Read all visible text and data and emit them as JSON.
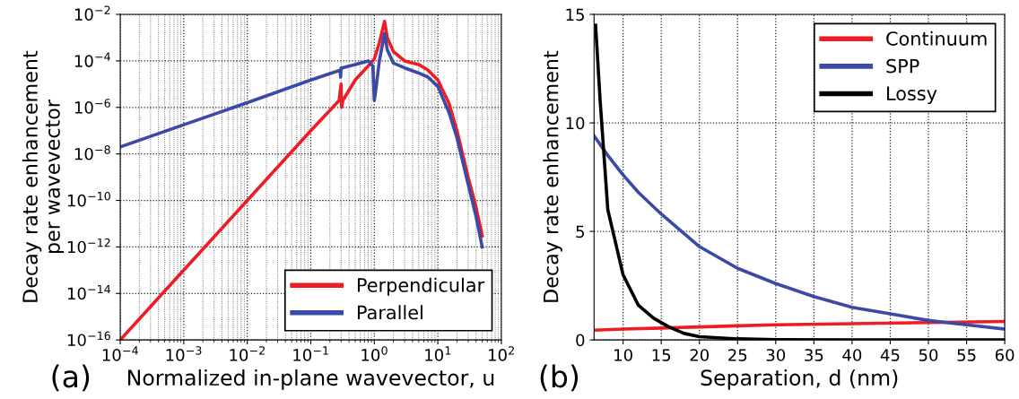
{
  "chart_data": [
    {
      "type": "line",
      "xlabel": "Normalized in-plane wavevector, u",
      "ylabel": "Decay rate enhancement\nper wavevector",
      "log": "xy",
      "grid": true,
      "legend": "bottom right",
      "line_style": "solid",
      "marker": "none",
      "xlim": [
        0.0001,
        100
      ],
      "ylim": [
        1e-16,
        0.01
      ],
      "xticks": [
        {
          "value": 0.0001,
          "label": "10$^{−4}$"
        },
        {
          "value": 0.001,
          "label": "10$^{−3}$"
        },
        {
          "value": 0.01,
          "label": "10$^{−2}$"
        },
        {
          "value": 0.1,
          "label": "10$^{−1}$"
        },
        {
          "value": 1,
          "label": "10$^{0}$"
        },
        {
          "value": 10,
          "label": "10$^{1}$"
        },
        {
          "value": 100,
          "label": "10$^{2}$"
        }
      ],
      "yticks": [
        {
          "value": 1e-16,
          "label": "10$^{−16}$"
        },
        {
          "value": 1e-14,
          "label": "10$^{−14}$"
        },
        {
          "value": 1e-12,
          "label": "10$^{−12}$"
        },
        {
          "value": 1e-10,
          "label": "10$^{−10}$"
        },
        {
          "value": 1e-08,
          "label": "10$^{−8}$"
        },
        {
          "value": 1e-06,
          "label": "10$^{−6}$"
        },
        {
          "value": 0.0001,
          "label": "10$^{−4}$"
        },
        {
          "value": 0.01,
          "label": "10$^{−2}$"
        }
      ],
      "annotations": [
        "(a)"
      ],
      "series": [
        {
          "name": "Perpendicular",
          "color": "#ee1c25",
          "x": [
            0.0001,
            0.001,
            0.01,
            0.1,
            0.28,
            0.3,
            0.305,
            0.32,
            0.5,
            0.8,
            1.0,
            1.2,
            1.45,
            1.6,
            2,
            3,
            5,
            7,
            10,
            15,
            20,
            30,
            40,
            50
          ],
          "values": [
            1e-16,
            1e-13,
            1e-10,
            1e-07,
            2e-06,
            1e-05,
            1e-06,
            2e-06,
            1.5e-05,
            6e-05,
            0.00012,
            0.0006,
            0.005,
            0.001,
            0.00025,
            0.0001,
            7e-05,
            4e-05,
            1.5e-05,
            1.5e-06,
            1e-07,
            1e-09,
            5e-11,
            3e-12
          ]
        },
        {
          "name": "Parallel",
          "color": "#3a4aa6",
          "x": [
            0.0001,
            0.001,
            0.01,
            0.1,
            0.29,
            0.295,
            0.3,
            0.31,
            0.5,
            0.8,
            0.95,
            1.0,
            1.05,
            1.2,
            1.45,
            1.6,
            2,
            3,
            5,
            7,
            10,
            15,
            20,
            30,
            40,
            50
          ],
          "values": [
            2e-08,
            1.8e-07,
            1.6e-06,
            1.5e-05,
            4e-05,
            2e-05,
            5e-05,
            5e-05,
            7e-05,
            0.0001,
            6e-05,
            2e-06,
            5e-06,
            0.0001,
            0.0015,
            0.0003,
            8e-05,
            5e-05,
            3e-05,
            2e-05,
            8e-06,
            6e-07,
            5e-08,
            5e-10,
            2e-11,
            1e-12
          ]
        }
      ]
    },
    {
      "type": "line",
      "xlabel": "Separation, d (nm)",
      "ylabel": "Decay rate enhancement",
      "grid": true,
      "legend": "top right",
      "line_style": "solid",
      "marker": "none",
      "xlim": [
        6.2,
        60
      ],
      "ylim": [
        0,
        15
      ],
      "xticks": [
        10,
        15,
        20,
        25,
        30,
        35,
        40,
        45,
        50,
        55,
        60
      ],
      "yticks": [
        0,
        5,
        10,
        15
      ],
      "annotations": [
        "(b)"
      ],
      "series": [
        {
          "name": "Continuum",
          "color": "#ee1c25",
          "x": [
            6.2,
            10,
            15,
            20,
            25,
            30,
            40,
            50,
            60
          ],
          "values": [
            0.45,
            0.5,
            0.55,
            0.6,
            0.65,
            0.7,
            0.75,
            0.8,
            0.85
          ]
        },
        {
          "name": "SPP",
          "color": "#3a4aa6",
          "x": [
            6.2,
            8,
            10,
            12,
            15,
            20,
            25,
            30,
            35,
            40,
            45,
            50,
            55,
            60
          ],
          "values": [
            9.4,
            8.5,
            7.6,
            6.8,
            5.8,
            4.3,
            3.3,
            2.6,
            2.0,
            1.5,
            1.2,
            0.9,
            0.7,
            0.5
          ]
        },
        {
          "name": "Lossy",
          "color": "#000000",
          "x": [
            6.4,
            7,
            8,
            9,
            10,
            12,
            14,
            16,
            18,
            20,
            25,
            30,
            40,
            50,
            60
          ],
          "values": [
            14.5,
            11,
            6,
            4.5,
            3.0,
            1.6,
            1.0,
            0.6,
            0.3,
            0.15,
            0.05,
            0.01,
            0,
            0,
            0
          ]
        }
      ]
    }
  ]
}
